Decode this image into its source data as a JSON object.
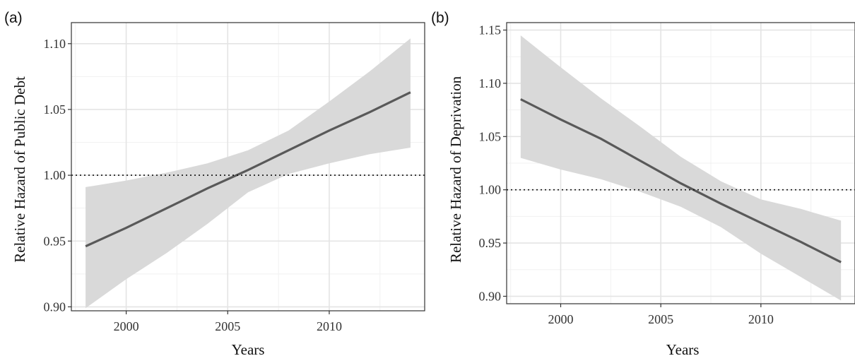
{
  "chart_data": [
    {
      "type": "line",
      "panel_label": "(a)",
      "xlabel": "Years",
      "ylabel": "Relative Hazard of Public Debt",
      "xlim": [
        1997.3,
        2014.7
      ],
      "ylim": [
        0.897,
        1.116
      ],
      "x_ticks": [
        2000,
        2005,
        2010
      ],
      "x_tick_labels": [
        "2000",
        "2005",
        "2010"
      ],
      "y_ticks": [
        0.9,
        0.95,
        1.0,
        1.05,
        1.1
      ],
      "y_tick_labels": [
        "0.90",
        "0.95",
        "1.00",
        "1.05",
        "1.10"
      ],
      "reference_line": 1.0,
      "grid": true,
      "series": [
        {
          "x": [
            1998,
            2000,
            2002,
            2004,
            2006,
            2008,
            2010,
            2012,
            2014
          ],
          "y": [
            0.946,
            0.96,
            0.975,
            0.99,
            1.004,
            1.019,
            1.034,
            1.048,
            1.063
          ],
          "ci_lower": [
            0.899,
            0.921,
            0.941,
            0.963,
            0.987,
            1.001,
            1.009,
            1.016,
            1.021
          ],
          "ci_upper": [
            0.991,
            0.996,
            1.002,
            1.009,
            1.019,
            1.034,
            1.056,
            1.079,
            1.104
          ]
        }
      ]
    },
    {
      "type": "line",
      "panel_label": "(b)",
      "xlabel": "Years",
      "ylabel": "Relative Hazard of Deprivation",
      "xlim": [
        1997.3,
        2014.7
      ],
      "ylim": [
        0.893,
        1.157
      ],
      "x_ticks": [
        2000,
        2005,
        2010
      ],
      "x_tick_labels": [
        "2000",
        "2005",
        "2010"
      ],
      "y_ticks": [
        0.9,
        0.95,
        1.0,
        1.05,
        1.1,
        1.15
      ],
      "y_tick_labels": [
        "0.90",
        "0.95",
        "1.00",
        "1.05",
        "1.10",
        "1.15"
      ],
      "reference_line": 1.0,
      "grid": true,
      "series": [
        {
          "x": [
            1998,
            2000,
            2002,
            2004,
            2006,
            2008,
            2010,
            2012,
            2014
          ],
          "y": [
            1.085,
            1.066,
            1.048,
            1.027,
            1.006,
            0.987,
            0.969,
            0.951,
            0.932
          ],
          "ci_lower": [
            1.03,
            1.019,
            1.01,
            0.998,
            0.984,
            0.965,
            0.94,
            0.918,
            0.896
          ],
          "ci_upper": [
            1.145,
            1.115,
            1.086,
            1.059,
            1.031,
            1.008,
            0.991,
            0.982,
            0.971
          ]
        }
      ]
    }
  ],
  "colors": {
    "ribbon": "#d9d9d9",
    "line": "#595959",
    "grid_major": "#e4e4e4",
    "grid_minor": "#f1f1f1",
    "panel_border": "#333333",
    "reference": "#111111"
  }
}
